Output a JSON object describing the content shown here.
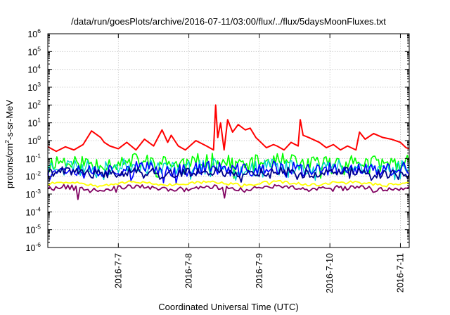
{
  "chart_data": {
    "type": "line",
    "title": "/data/run/goesPlots/archive/2016-07-11/03:00/flux/../flux/5daysMoonFluxes.txt",
    "xlabel": "Coordinated Universal Time (UTC)",
    "ylabel": {
      "prefix": "protons/cm",
      "superscript": "2",
      "suffix": "-s-sr-MeV"
    },
    "yscale": "log",
    "ylim_exponents": [
      -6,
      6
    ],
    "y_ticks": [
      {
        "base": "10",
        "exp": "-6"
      },
      {
        "base": "10",
        "exp": "-5"
      },
      {
        "base": "10",
        "exp": "-4"
      },
      {
        "base": "10",
        "exp": "-3"
      },
      {
        "base": "10",
        "exp": "-2"
      },
      {
        "base": "10",
        "exp": "-1"
      },
      {
        "base": "10",
        "exp": "0"
      },
      {
        "base": "10",
        "exp": "1"
      },
      {
        "base": "10",
        "exp": "2"
      },
      {
        "base": "10",
        "exp": "3"
      },
      {
        "base": "10",
        "exp": "4"
      },
      {
        "base": "10",
        "exp": "5"
      },
      {
        "base": "10",
        "exp": "6"
      }
    ],
    "x_unit": "days since 2016-07-06 00:00 UTC",
    "xlim": [
      0.0,
      5.125
    ],
    "x_ticks": [
      {
        "label": "2016-7-7",
        "value": 1
      },
      {
        "label": "2016-7-8",
        "value": 2
      },
      {
        "label": "2016-7-9",
        "value": 3
      },
      {
        "label": "2016-7-10",
        "value": 4
      },
      {
        "label": "2016-7-11",
        "value": 5
      }
    ],
    "grid": true,
    "legend": "none",
    "series": [
      {
        "color": "#ff0000",
        "width": 2.0,
        "x": [
          0.0,
          0.12,
          0.25,
          0.37,
          0.5,
          0.62,
          0.75,
          0.8,
          0.88,
          1.0,
          1.12,
          1.25,
          1.37,
          1.5,
          1.62,
          1.7,
          1.75,
          1.85,
          1.95,
          2.1,
          2.25,
          2.35,
          2.38,
          2.41,
          2.45,
          2.5,
          2.55,
          2.62,
          2.7,
          2.8,
          2.87,
          2.95,
          3.1,
          3.2,
          3.25,
          3.35,
          3.45,
          3.55,
          3.58,
          3.62,
          3.7,
          3.85,
          3.95,
          4.05,
          4.15,
          4.25,
          4.37,
          4.42,
          4.5,
          4.62,
          4.75,
          4.87,
          5.0,
          5.08,
          5.125
        ],
        "y": [
          0.45,
          0.25,
          0.45,
          0.3,
          0.6,
          3.5,
          1.5,
          0.8,
          0.5,
          0.35,
          0.8,
          0.3,
          1.2,
          0.5,
          4.0,
          0.8,
          2.0,
          0.5,
          0.3,
          1.0,
          0.5,
          0.3,
          100,
          1.5,
          10,
          0.3,
          15,
          3.0,
          8.0,
          4.0,
          5.0,
          1.5,
          0.4,
          0.6,
          0.5,
          0.3,
          0.8,
          0.5,
          15,
          2.0,
          1.5,
          0.8,
          0.4,
          0.6,
          0.3,
          0.5,
          0.3,
          3.0,
          1.2,
          2.5,
          1.5,
          1.2,
          0.8,
          0.4,
          0.35
        ]
      },
      {
        "color": "#00ff00",
        "width": 1.6,
        "center": 0.06,
        "noise_decades": 0.45,
        "seed": 11,
        "n_points": 200
      },
      {
        "color": "#00d0d0",
        "width": 1.4,
        "center": 0.035,
        "noise_decades": 0.4,
        "seed": 23,
        "n_points": 200
      },
      {
        "color": "#0000ff",
        "width": 1.6,
        "center": 0.025,
        "noise_decades": 0.4,
        "seed": 37,
        "n_points": 200
      },
      {
        "color": "#00008b",
        "width": 1.8,
        "center": 0.016,
        "noise_decades": 0.25,
        "seed": 41,
        "n_points": 200
      },
      {
        "color": "#ffff00",
        "width": 1.8,
        "center": 0.004,
        "noise_decades": 0.08,
        "seed": 53,
        "n_points": 160
      },
      {
        "color": "#800060",
        "width": 1.8,
        "center": 0.0022,
        "noise_decades": 0.12,
        "seed": 67,
        "n_points": 180,
        "dips": [
          [
            0.42,
            0.0005
          ],
          [
            2.5,
            0.0006
          ]
        ]
      }
    ]
  }
}
